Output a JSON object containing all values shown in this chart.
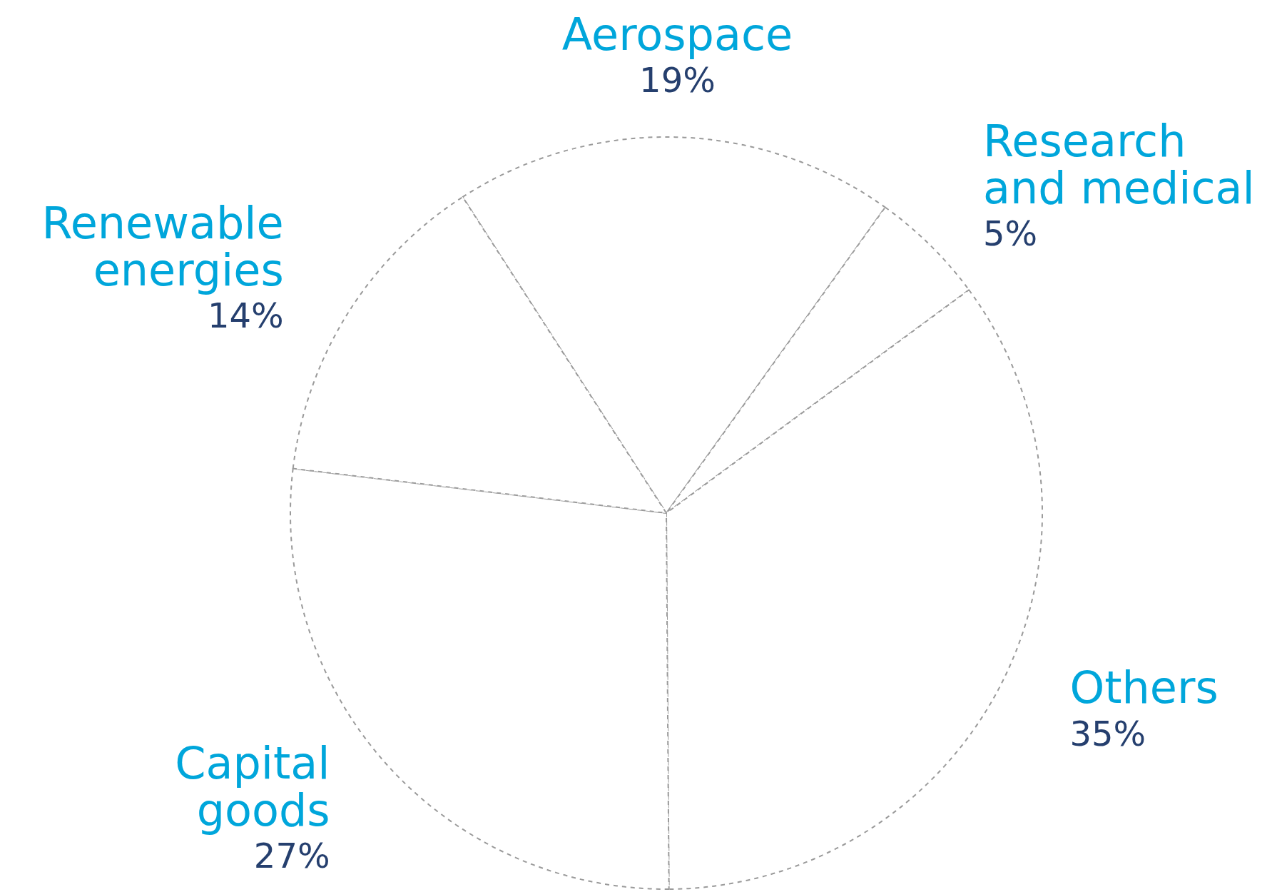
{
  "chart_data": {
    "type": "pie",
    "categories": [
      "Aerospace",
      "Research and medical",
      "Others",
      "Capital goods",
      "Renewable energies"
    ],
    "values": [
      19,
      5,
      35,
      27,
      14
    ],
    "value_labels": [
      "19%",
      "5%",
      "35%",
      "27%",
      "14%"
    ],
    "colors": [
      "#ffffff",
      "#ffffff",
      "#ffffff",
      "#ffffff",
      "#ffffff"
    ],
    "legend": false
  }
}
